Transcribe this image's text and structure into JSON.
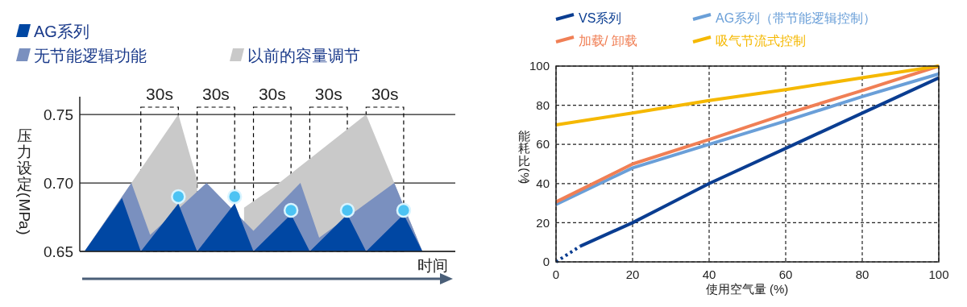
{
  "chart_data": [
    {
      "type": "area",
      "categories": [
        null,
        null,
        null,
        null,
        null,
        null,
        null,
        null,
        null,
        null,
        null,
        null,
        null,
        null,
        null,
        null,
        null,
        null,
        null,
        null,
        null,
        null,
        null,
        null,
        null,
        null,
        null,
        null,
        null,
        null,
        null,
        null,
        null,
        null,
        null,
        null,
        null,
        null,
        null,
        null
      ],
      "xlabel": "时间",
      "ylabel": "压力设定(MPa)",
      "ylim": [
        0.65,
        0.763
      ],
      "yticks": [
        0.65,
        {
          "value": 0.7,
          "label": "0.70"
        },
        0.75
      ],
      "tick_labels": "y",
      "grid": "y",
      "legend": "top left",
      "annotations": [
        "30s",
        "30s",
        "30s",
        "30s",
        "30s"
      ],
      "series": [
        {
          "name": "AG系列",
          "color": "#0047a3",
          "values": [
            0.65,
            null,
            null,
            null,
            0.689,
            null,
            0.65,
            null,
            null,
            null,
            0.685,
            null,
            0.65,
            null,
            null,
            null,
            0.685,
            null,
            0.65,
            null,
            null,
            null,
            0.677,
            null,
            0.65,
            null,
            null,
            null,
            0.677,
            null,
            0.65,
            null,
            null,
            null,
            0.677,
            null,
            0.65,
            null,
            null,
            null
          ]
        },
        {
          "name": "无节能逻辑功能",
          "color": "#7a90bf",
          "values": [
            0.65,
            null,
            null,
            null,
            null,
            0.7,
            null,
            0.662,
            null,
            null,
            null,
            null,
            null,
            0.7,
            null,
            null,
            null,
            null,
            0.665,
            null,
            null,
            null,
            null,
            0.7,
            null,
            0.66,
            null,
            null,
            null,
            null,
            null,
            null,
            null,
            0.7,
            null,
            null,
            0.65,
            null,
            null,
            null
          ]
        },
        {
          "name": "以前的容量调节",
          "color": "#c9c9c9",
          "values": [
            0.65,
            null,
            null,
            null,
            null,
            null,
            null,
            null,
            null,
            null,
            0.75,
            null,
            0.702,
            null,
            null,
            null,
            null,
            null,
            null,
            null,
            null,
            null,
            null,
            null,
            null,
            null,
            null,
            null,
            null,
            null,
            null,
            null,
            null,
            null,
            null,
            null,
            null,
            null,
            null,
            null
          ]
        },
        {
          "color": "#c9c9c9",
          "values": [
            null,
            null,
            null,
            null,
            null,
            null,
            null,
            null,
            null,
            null,
            null,
            null,
            null,
            null,
            null,
            null,
            null,
            0.682,
            null,
            null,
            0.696,
            null,
            null,
            null,
            null,
            null,
            null,
            null,
            null,
            null,
            0.75,
            null,
            null,
            null,
            null,
            null,
            0.65,
            null,
            null,
            null
          ]
        },
        {
          "type": "scatter",
          "marker": "circle",
          "color": "#4cc3f3",
          "values": [
            null,
            null,
            null,
            null,
            null,
            null,
            null,
            null,
            null,
            null,
            0.69,
            null,
            null,
            null,
            null,
            null,
            0.69,
            null,
            null,
            null,
            null,
            null,
            0.68,
            null,
            null,
            null,
            null,
            null,
            0.68,
            null,
            null,
            null,
            null,
            null,
            0.68,
            null,
            null,
            null,
            null,
            null
          ]
        }
      ]
    },
    {
      "type": "line",
      "xlabel": "使用空气量 (%)",
      "ylabel": "能耗比(%)",
      "xlim": [
        0,
        100
      ],
      "ylim": [
        0,
        100
      ],
      "xticks": [
        0,
        20,
        40,
        60,
        80,
        100
      ],
      "yticks": [
        0,
        20,
        40,
        60,
        80,
        100
      ],
      "grid": true,
      "legend": "top",
      "series": [
        {
          "color": "#0a3d91",
          "line_style": "dotted",
          "x": [
            0,
            6.3
          ],
          "values": [
            0,
            8
          ]
        },
        {
          "name": "VS系列",
          "color": "#0a3d91",
          "x": [
            6.3,
            20,
            40,
            60,
            80,
            100
          ],
          "values": [
            8,
            20,
            40,
            58,
            76,
            94
          ]
        },
        {
          "name": "AG系列（带节能逻辑控制）",
          "color": "#6a9fd8",
          "x": [
            0,
            20,
            40,
            60,
            80,
            100
          ],
          "values": [
            29.3,
            48,
            60,
            72,
            84.4,
            96
          ]
        },
        {
          "name": "加载/ 卸载",
          "color": "#f07f55",
          "x": [
            0,
            20,
            40,
            60,
            80,
            100
          ],
          "values": [
            30.6,
            50,
            62.5,
            75.5,
            87.5,
            100
          ]
        },
        {
          "name": "吸气节流式控制",
          "color": "#f5b800",
          "x": [
            0,
            20,
            40,
            60,
            80,
            100
          ],
          "values": [
            70,
            76,
            82.4,
            88,
            94,
            100
          ]
        }
      ]
    }
  ]
}
